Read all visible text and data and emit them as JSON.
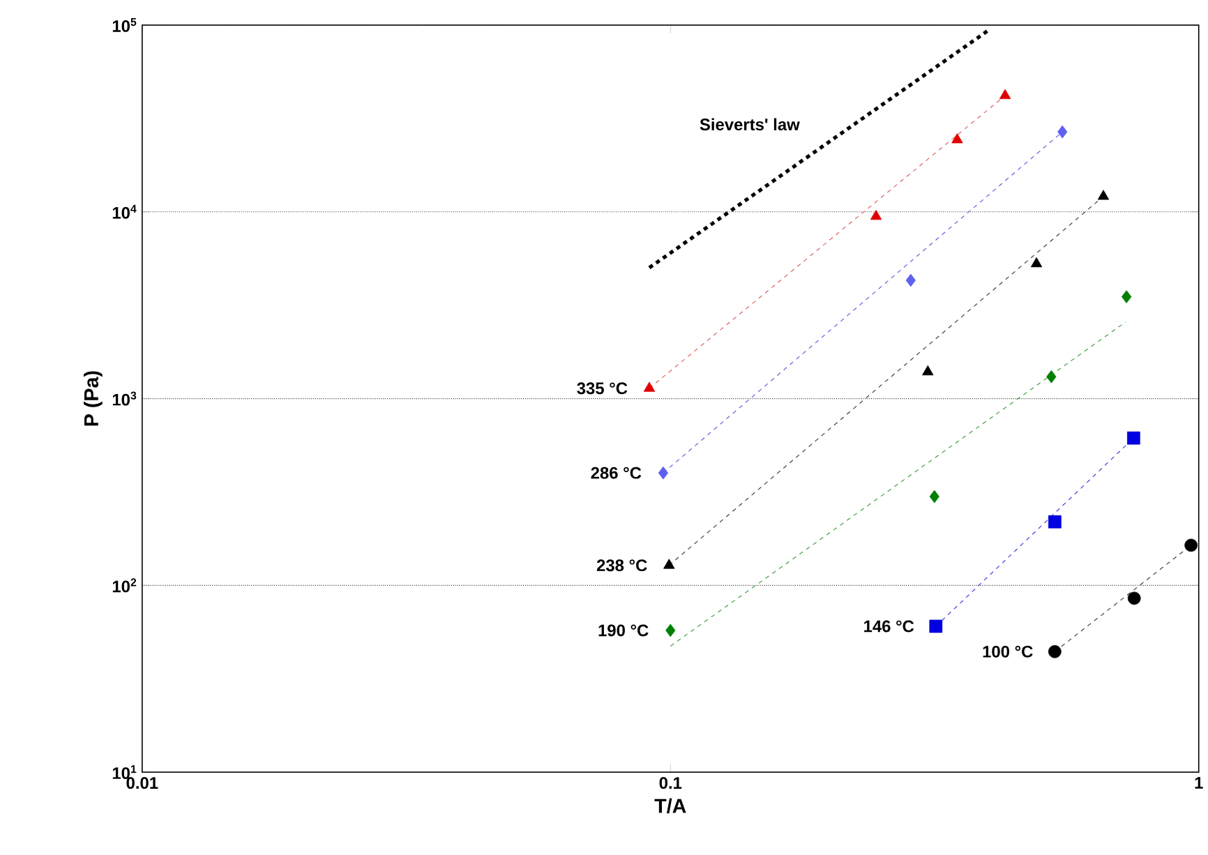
{
  "chart_data": {
    "type": "scatter",
    "xlabel": "T/A",
    "ylabel": "P (Pa)",
    "log": "xy",
    "grid": "y",
    "xlim": [
      0.01,
      1
    ],
    "ylim": [
      10,
      100000
    ],
    "xticks": [
      0.01,
      0.1,
      1
    ],
    "yticks": [
      {
        "value": 10,
        "label": "10$^{1}$"
      },
      {
        "value": 100,
        "label": "10$^{2}$"
      },
      {
        "value": 1000,
        "label": "10$^{3}$"
      },
      {
        "value": 10000,
        "label": "10$^{4}$"
      },
      {
        "value": 100000,
        "label": "10$^{5}$"
      }
    ],
    "series": [
      {
        "name": "Sieverts' law",
        "type": "line",
        "color": "#000000",
        "line_style": "dashed",
        "marker": "none",
        "x": [
          0.0912,
          0.399
        ],
        "values": [
          5020,
          93300
        ]
      },
      {
        "type": "line",
        "color": "#e06060",
        "line_style": "dashed",
        "marker": "none",
        "x": [
          0.0912,
          0.43
        ],
        "values": [
          1135,
          41900
        ]
      },
      {
        "type": "line",
        "color": "#6060e0",
        "line_style": "dashed",
        "marker": "none",
        "x": [
          0.0969,
          0.552
        ],
        "values": [
          400,
          26800
        ]
      },
      {
        "type": "line",
        "color": "#404040",
        "line_style": "dashed",
        "marker": "none",
        "x": [
          0.0994,
          0.66
        ],
        "values": [
          128,
          12100
        ]
      },
      {
        "type": "line",
        "color": "#40a040",
        "line_style": "dashed",
        "marker": "none",
        "x": [
          0.1,
          0.727
        ],
        "values": [
          47.3,
          2570
        ]
      },
      {
        "type": "line",
        "color": "#4040e0",
        "line_style": "dashed",
        "marker": "none",
        "x": [
          0.318,
          0.753
        ],
        "values": [
          60.4,
          615
        ]
      },
      {
        "type": "line",
        "color": "#404040",
        "line_style": "dashed",
        "marker": "none",
        "x": [
          0.534,
          0.967
        ],
        "values": [
          44.2,
          164
        ]
      },
      {
        "name": "335 °C",
        "color": "#e00000",
        "marker": "triangle",
        "x": [
          0.0912,
          0.245,
          0.349,
          0.43
        ],
        "values": [
          1135,
          9450,
          24300,
          41900
        ]
      },
      {
        "name": "286 °C",
        "color": "#6060f0",
        "marker": "diamond",
        "x": [
          0.0969,
          0.285,
          0.552
        ],
        "values": [
          400,
          4300,
          26800
        ]
      },
      {
        "name": "238 °C",
        "color": "#000000",
        "marker": "triangle",
        "x": [
          0.0994,
          0.307,
          0.493,
          0.66
        ],
        "values": [
          128,
          1390,
          5270,
          12100
        ]
      },
      {
        "name": "190 °C",
        "color": "#008000",
        "marker": "diamond",
        "x": [
          0.1,
          0.316,
          0.526,
          0.73
        ],
        "values": [
          57.4,
          299,
          1310,
          3510
        ]
      },
      {
        "name": "146 °C",
        "color": "#0000e0",
        "marker": "square",
        "x": [
          0.318,
          0.534,
          0.753
        ],
        "values": [
          60.4,
          219,
          615
        ]
      },
      {
        "name": "100 °C",
        "color": "#000000",
        "marker": "circle",
        "x": [
          0.534,
          0.755,
          0.967
        ],
        "values": [
          44.2,
          85.3,
          164
        ]
      }
    ]
  }
}
